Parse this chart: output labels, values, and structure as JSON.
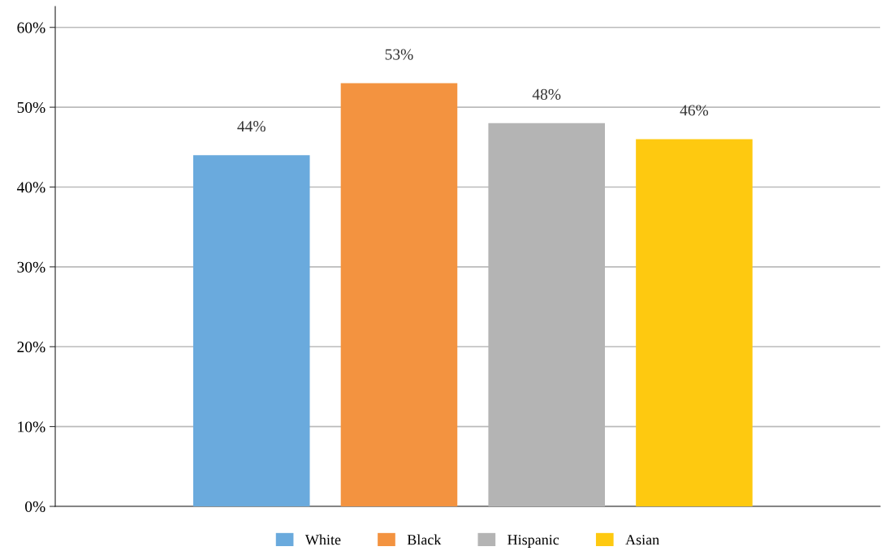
{
  "chart_data": {
    "type": "bar",
    "categories": [
      null
    ],
    "series": [
      {
        "name": "White",
        "color": "#6aaadd",
        "values": [
          44
        ],
        "value_labels": [
          "44%"
        ]
      },
      {
        "name": "Black",
        "color": "#f39340",
        "values": [
          53
        ],
        "value_labels": [
          "53%"
        ]
      },
      {
        "name": "Hispanic",
        "color": "#b4b4b4",
        "values": [
          48
        ],
        "value_labels": [
          "48%"
        ]
      },
      {
        "name": "Asian",
        "color": "#fec910",
        "values": [
          46
        ],
        "value_labels": [
          "46%"
        ]
      }
    ],
    "ylim": [
      0,
      62.6
    ],
    "yticks": [
      {
        "value": 0,
        "label": "0%"
      },
      {
        "value": 10,
        "label": "10%"
      },
      {
        "value": 20,
        "label": "20%"
      },
      {
        "value": 30,
        "label": "30%"
      },
      {
        "value": 40,
        "label": "40%"
      },
      {
        "value": 50,
        "label": "50%"
      },
      {
        "value": 60,
        "label": "60%"
      }
    ],
    "grid": "y",
    "legend": "bottom"
  }
}
